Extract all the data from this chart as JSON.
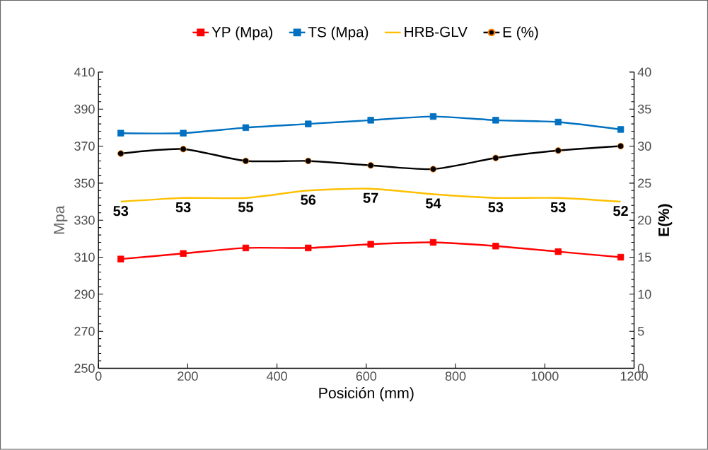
{
  "chart_data": {
    "type": "line",
    "xlabel": "Posición (mm)",
    "ylabel": "Mpa",
    "y2label": "E(%)",
    "x": [
      50,
      190,
      330,
      470,
      610,
      750,
      890,
      1030,
      1170
    ],
    "xlim": [
      0,
      1200
    ],
    "xticks": [
      0,
      200,
      400,
      600,
      800,
      1000,
      1200
    ],
    "ylim": [
      250,
      410
    ],
    "yticks": [
      250,
      270,
      290,
      310,
      330,
      350,
      370,
      390,
      410
    ],
    "y2lim": [
      0,
      40
    ],
    "y2ticks": [
      0,
      5,
      10,
      15,
      20,
      25,
      30,
      35,
      40
    ],
    "annotations": [
      {
        "text": "53",
        "x": 50,
        "y": 340
      },
      {
        "text": "53",
        "x": 190,
        "y": 342
      },
      {
        "text": "55",
        "x": 330,
        "y": 342
      },
      {
        "text": "56",
        "x": 470,
        "y": 346
      },
      {
        "text": "57",
        "x": 610,
        "y": 347
      },
      {
        "text": "54",
        "x": 750,
        "y": 344
      },
      {
        "text": "53",
        "x": 890,
        "y": 342
      },
      {
        "text": "53",
        "x": 1030,
        "y": 342
      },
      {
        "text": "52",
        "x": 1170,
        "y": 340
      }
    ],
    "legend": "top",
    "grid": false,
    "series": [
      {
        "name": "YP (Mpa)",
        "color": "#ff0000",
        "marker": "square",
        "values": [
          309,
          312,
          315,
          315,
          317,
          318,
          316,
          313,
          310
        ]
      },
      {
        "name": "TS (Mpa)",
        "color": "#0070c0",
        "marker": "square",
        "values": [
          377,
          377,
          380,
          382,
          384,
          386,
          384,
          383,
          379
        ]
      },
      {
        "name": "HRB-GLV",
        "color": "#ffc000",
        "marker": "none",
        "values": [
          340,
          342,
          342,
          346,
          347,
          344,
          342,
          342,
          340
        ]
      },
      {
        "name": "E (%)",
        "color": "#000000",
        "marker": "circle",
        "axis": "y2",
        "values": [
          29.0,
          29.6,
          28.0,
          28.0,
          27.4,
          26.9,
          28.4,
          29.4,
          30.0
        ]
      }
    ]
  }
}
